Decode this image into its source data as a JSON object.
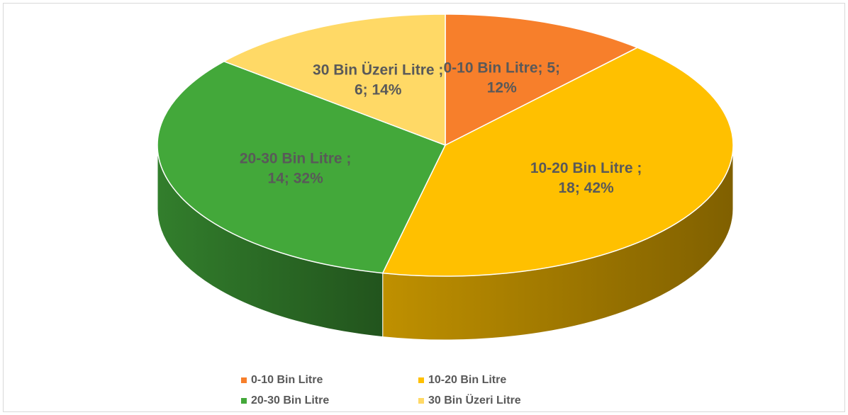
{
  "chart_data": {
    "type": "pie3d",
    "categories": [
      "0-10 Bin Litre",
      "10-20 Bin Litre",
      "20-30 Bin Litre",
      "30 Bin Üzeri Litre"
    ],
    "values": [
      5,
      18,
      14,
      6
    ],
    "value_labels": [
      [
        "0-10 Bin Litre; 5;",
        "12%"
      ],
      [
        "10-20 Bin Litre ;",
        "18; 42%"
      ],
      [
        "20-30 Bin Litre ;",
        "14; 32%"
      ],
      [
        "30 Bin Üzeri Litre ;",
        "6; 14%"
      ]
    ],
    "colors": [
      "#f77f2b",
      "#ffc000",
      "#43a83a",
      "#ffd966"
    ],
    "legend": "bottom"
  }
}
